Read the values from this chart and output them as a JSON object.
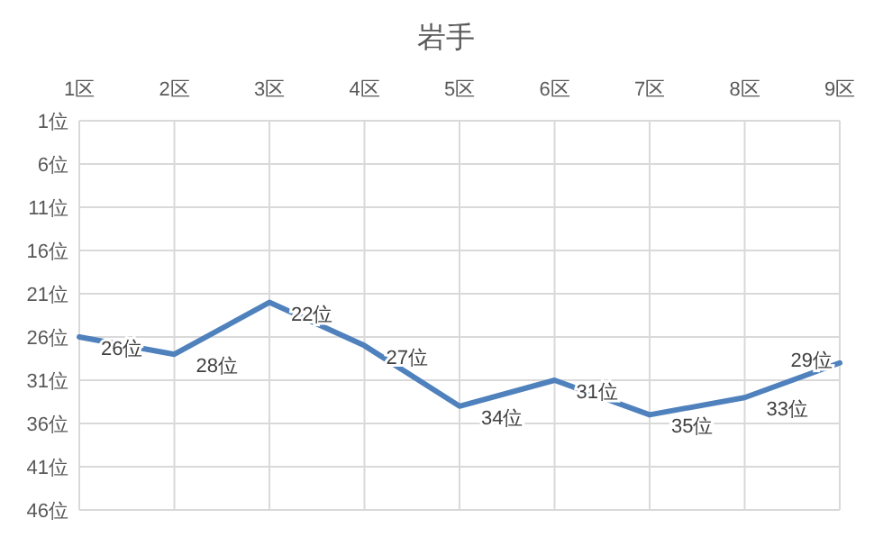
{
  "chart_data": {
    "type": "line",
    "title": "岩手",
    "categories": [
      "1区",
      "2区",
      "3区",
      "4区",
      "5区",
      "6区",
      "7区",
      "8区",
      "9区"
    ],
    "series": [
      {
        "color": "#4f81bd",
        "values": [
          26,
          28,
          22,
          27,
          34,
          31,
          35,
          33,
          29
        ],
        "value_labels": [
          "26位",
          "28位",
          "22位",
          "27位",
          "34位",
          "31位",
          "35位",
          "33位",
          "29位"
        ]
      }
    ],
    "ylim": [
      46,
      1
    ],
    "yticks": [
      {
        "value": 1,
        "label": "1位"
      },
      {
        "value": 6,
        "label": "6位"
      },
      {
        "value": 11,
        "label": "11位"
      },
      {
        "value": 16,
        "label": "16位"
      },
      {
        "value": 21,
        "label": "21位"
      },
      {
        "value": 26,
        "label": "26位"
      },
      {
        "value": 31,
        "label": "31位"
      },
      {
        "value": 36,
        "label": "36位"
      },
      {
        "value": 41,
        "label": "41位"
      },
      {
        "value": 46,
        "label": "46位"
      }
    ],
    "grid": true,
    "marker": "none",
    "line_style": "solid"
  }
}
